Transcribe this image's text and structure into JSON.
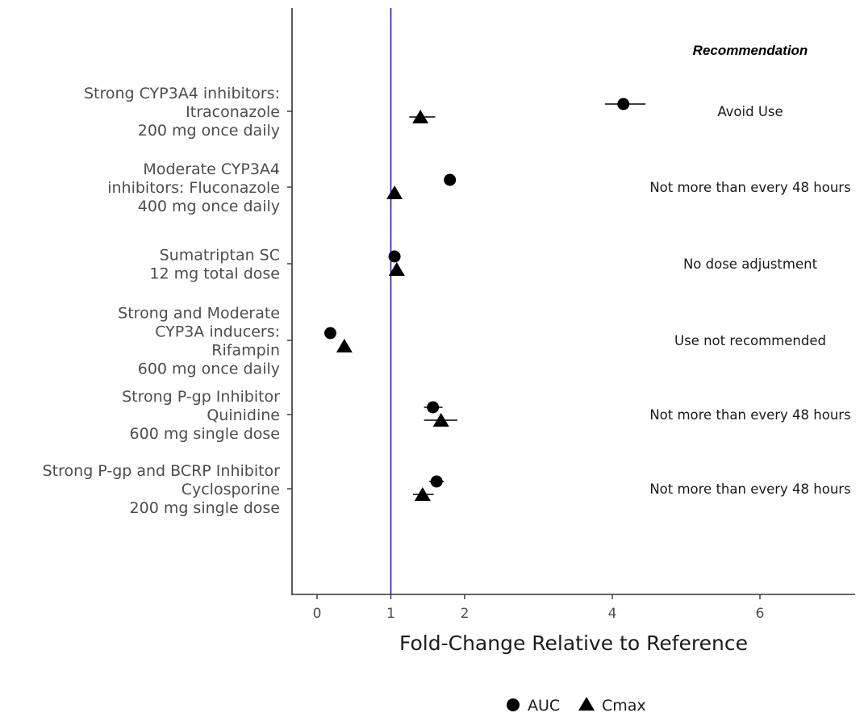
{
  "chart_data": {
    "type": "scatter",
    "title": "",
    "xlabel": "Fold-Change Relative to Reference",
    "ylabel": "",
    "xlim": [
      -0.35,
      7.3
    ],
    "xticks": [
      0,
      1,
      2,
      4,
      6
    ],
    "reference_line": {
      "x": 1,
      "color": "#1f1fb4"
    },
    "grid": false,
    "legend": {
      "placement": "bottom",
      "entries": [
        {
          "name": "AUC",
          "shape": "circle"
        },
        {
          "name": "Cmax",
          "shape": "triangle"
        }
      ]
    },
    "recommendation_header": "Recommendation",
    "categories": [
      {
        "label_lines": [
          "Strong CYP3A4 inhibitors:",
          "Itraconazole",
          "200 mg once daily"
        ],
        "recommendation": "Avoid Use",
        "auc": {
          "value": 4.15,
          "lo": 3.9,
          "hi": 4.45
        },
        "cmax": {
          "value": 1.4,
          "lo": 1.25,
          "hi": 1.6
        }
      },
      {
        "label_lines": [
          "Moderate CYP3A4",
          "inhibitors: Fluconazole",
          "400 mg once daily"
        ],
        "recommendation": "Not more than every 48 hours",
        "auc": {
          "value": 1.8
        },
        "cmax": {
          "value": 1.05
        }
      },
      {
        "label_lines": [
          "Sumatriptan SC",
          "12 mg total dose"
        ],
        "recommendation": "No dose adjustment",
        "auc": {
          "value": 1.05
        },
        "cmax": {
          "value": 1.08
        }
      },
      {
        "label_lines": [
          "Strong and Moderate",
          "CYP3A inducers:",
          "Rifampin",
          "600 mg once daily"
        ],
        "recommendation": "Use not recommended",
        "auc": {
          "value": 0.18
        },
        "cmax": {
          "value": 0.37
        }
      },
      {
        "label_lines": [
          "Strong P-gp Inhibitor",
          "Quinidine",
          "600 mg single dose"
        ],
        "recommendation": "Not more than every 48 hours",
        "auc": {
          "value": 1.57,
          "lo": 1.45,
          "hi": 1.7
        },
        "cmax": {
          "value": 1.68,
          "lo": 1.45,
          "hi": 1.9
        }
      },
      {
        "label_lines": [
          "Strong P-gp and BCRP Inhibitor",
          "Cyclosporine",
          "200 mg single dose"
        ],
        "recommendation": "Not more than every 48 hours",
        "auc": {
          "value": 1.62,
          "lo": 1.52,
          "hi": 1.72
        },
        "cmax": {
          "value": 1.43,
          "lo": 1.3,
          "hi": 1.58
        }
      }
    ]
  }
}
